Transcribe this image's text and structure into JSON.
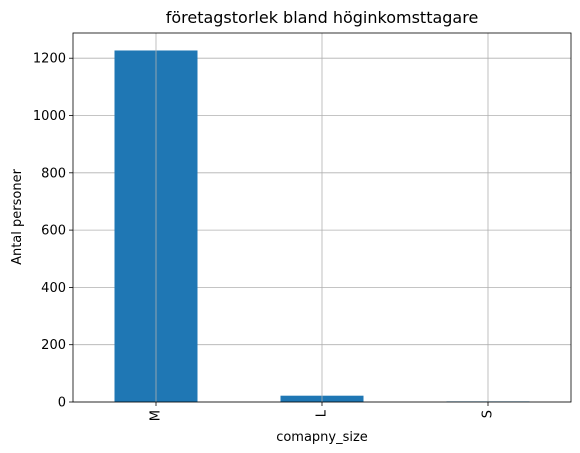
{
  "chart_data": {
    "type": "bar",
    "title": "företagstorlek bland höginkomsttagare",
    "xlabel": "comapny_size",
    "ylabel": "Antal personer",
    "categories": [
      "M",
      "L",
      "S"
    ],
    "values": [
      1227,
      22,
      2
    ],
    "ylim": [
      0,
      1288
    ],
    "yticks": [
      0,
      200,
      400,
      600,
      800,
      1000,
      1200
    ],
    "grid": true,
    "bar_color": "#1f77b4",
    "grid_color": "#b0b0b0"
  }
}
